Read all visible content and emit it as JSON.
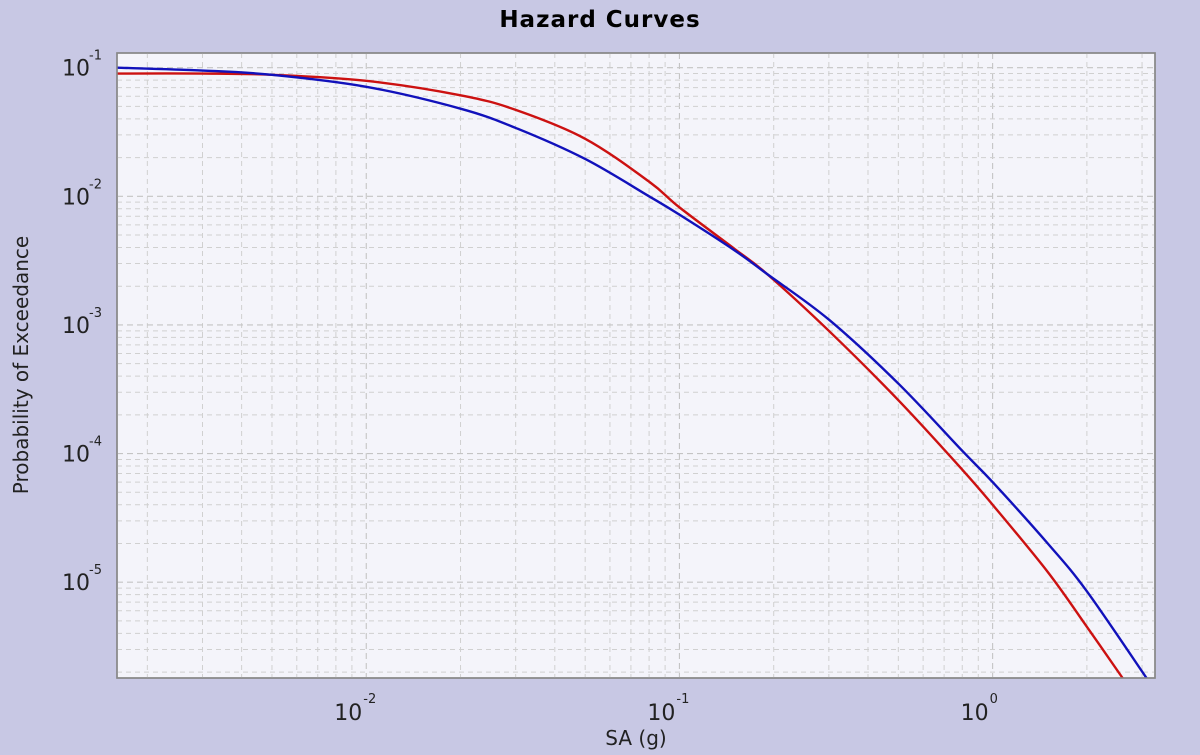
{
  "chart_data": {
    "type": "line",
    "title": "Hazard Curves",
    "xlabel": "SA (g)",
    "ylabel": "Probability of Exceedance",
    "x_scale": "log",
    "y_scale": "log",
    "xlim": [
      0.0016,
      3.3
    ],
    "ylim": [
      1.8e-06,
      0.13
    ],
    "grid": true,
    "x_ticks": [
      {
        "value": 0.01,
        "base": "10",
        "exp": "-2"
      },
      {
        "value": 0.1,
        "base": "10",
        "exp": "-1"
      },
      {
        "value": 1,
        "base": "10",
        "exp": "0"
      }
    ],
    "y_ticks": [
      {
        "value": 0.1,
        "base": "10",
        "exp": "-1"
      },
      {
        "value": 0.01,
        "base": "10",
        "exp": "-2"
      },
      {
        "value": 0.001,
        "base": "10",
        "exp": "-3"
      },
      {
        "value": 0.0001,
        "base": "10",
        "exp": "-4"
      },
      {
        "value": 1e-05,
        "base": "10",
        "exp": "-5"
      }
    ],
    "series": [
      {
        "color": "#cc1111",
        "x": [
          0.0016,
          0.003,
          0.005,
          0.01,
          0.02,
          0.03,
          0.05,
          0.08,
          0.1,
          0.15,
          0.19,
          0.3,
          0.5,
          0.8,
          1.0,
          1.5,
          2.0,
          2.6
        ],
        "y": [
          0.09,
          0.09,
          0.088,
          0.079,
          0.061,
          0.047,
          0.028,
          0.013,
          0.0082,
          0.0039,
          0.0025,
          0.0009,
          0.00026,
          7.5e-05,
          4e-05,
          1.2e-05,
          4.5e-06,
          1.8e-06
        ]
      },
      {
        "color": "#1111bb",
        "x": [
          0.0016,
          0.003,
          0.005,
          0.01,
          0.02,
          0.03,
          0.05,
          0.08,
          0.1,
          0.15,
          0.19,
          0.3,
          0.5,
          0.8,
          1.0,
          1.5,
          2.0,
          3.1
        ],
        "y": [
          0.1,
          0.095,
          0.088,
          0.071,
          0.048,
          0.034,
          0.0195,
          0.01,
          0.0072,
          0.0038,
          0.0025,
          0.0011,
          0.00035,
          0.000105,
          6e-05,
          2e-05,
          8.5e-06,
          1.8e-06
        ]
      }
    ]
  }
}
